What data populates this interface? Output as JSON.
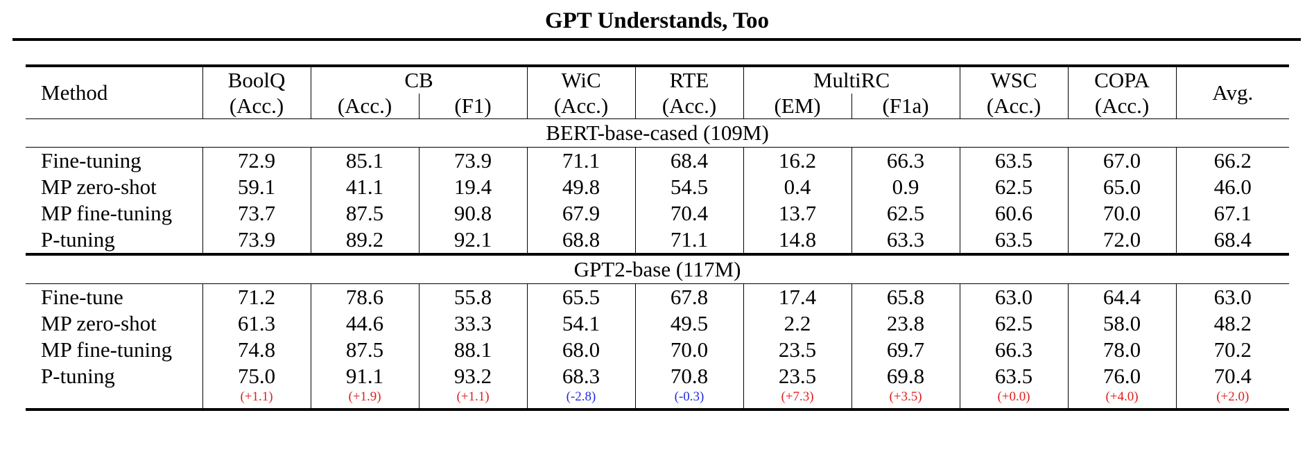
{
  "running_head": "GPT Understands, Too",
  "header": {
    "method": "Method",
    "tasks": {
      "boolq": "BoolQ",
      "cb": "CB",
      "wic": "WiC",
      "rte": "RTE",
      "multirc": "MultiRC",
      "wsc": "WSC",
      "copa": "COPA",
      "avg": "Avg."
    },
    "metrics": [
      "(Acc.)",
      "(Acc.)",
      "(F1)",
      "(Acc.)",
      "(Acc.)",
      "(EM)",
      "(F1a)",
      "(Acc.)",
      "(Acc.)"
    ]
  },
  "sections": [
    {
      "title": "BERT-base-cased (109M)",
      "rows": [
        {
          "method": "Fine-tuning",
          "values": [
            "72.9",
            "85.1",
            "73.9",
            "71.1",
            "68.4",
            "16.2",
            "66.3",
            "63.5",
            "67.0",
            "66.2"
          ]
        },
        {
          "method": "MP zero-shot",
          "values": [
            "59.1",
            "41.1",
            "19.4",
            "49.8",
            "54.5",
            "0.4",
            "0.9",
            "62.5",
            "65.0",
            "46.0"
          ]
        },
        {
          "method": "MP fine-tuning",
          "values": [
            "73.7",
            "87.5",
            "90.8",
            "67.9",
            "70.4",
            "13.7",
            "62.5",
            "60.6",
            "70.0",
            "67.1"
          ]
        },
        {
          "method": "P-tuning",
          "values": [
            "73.9",
            "89.2",
            "92.1",
            "68.8",
            "71.1",
            "14.8",
            "63.3",
            "63.5",
            "72.0",
            "68.4"
          ]
        }
      ]
    },
    {
      "title": "GPT2-base (117M)",
      "rows": [
        {
          "method": "Fine-tune",
          "values": [
            "71.2",
            "78.6",
            "55.8",
            "65.5",
            "67.8",
            "17.4",
            "65.8",
            "63.0",
            "64.4",
            "63.0"
          ]
        },
        {
          "method": "MP zero-shot",
          "values": [
            "61.3",
            "44.6",
            "33.3",
            "54.1",
            "49.5",
            "2.2",
            "23.8",
            "62.5",
            "58.0",
            "48.2"
          ]
        },
        {
          "method": "MP fine-tuning",
          "values": [
            "74.8",
            "87.5",
            "88.1",
            "68.0",
            "70.0",
            "23.5",
            "69.7",
            "66.3",
            "78.0",
            "70.2"
          ]
        },
        {
          "method": "P-tuning",
          "values": [
            "75.0",
            "91.1",
            "93.2",
            "68.3",
            "70.8",
            "23.5",
            "69.8",
            "63.5",
            "76.0",
            "70.4"
          ]
        }
      ],
      "deltas": [
        "(+1.1)",
        "(+1.9)",
        "(+1.1)",
        "(-2.8)",
        "(-0.3)",
        "(+7.3)",
        "(+3.5)",
        "(+0.0)",
        "(+4.0)",
        "(+2.0)"
      ]
    }
  ],
  "colors": {
    "positive_delta": "#e11d1d",
    "negative_delta": "#1d2be8"
  }
}
